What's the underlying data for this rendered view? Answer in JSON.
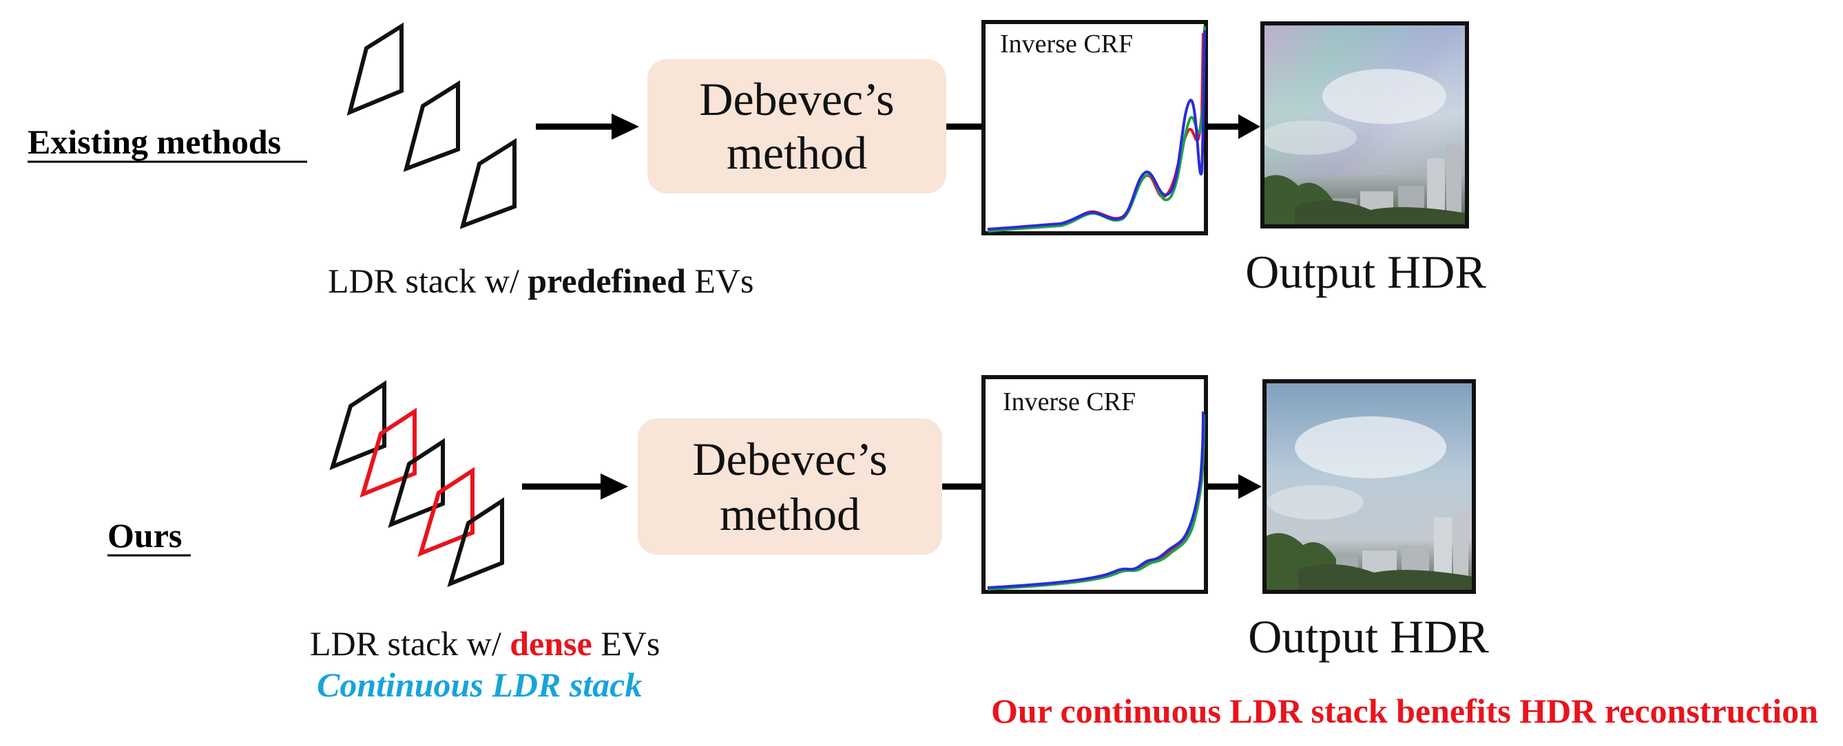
{
  "rows": {
    "top": {
      "label": "Existing methods",
      "caption_pre": "LDR stack w/",
      "caption_key": "predefined",
      "caption_post": "EVs",
      "box_line1": "Debevec’s",
      "box_line2": "method",
      "crf_title": "Inverse CRF",
      "output_label": "Output HDR"
    },
    "bottom": {
      "label": "Ours",
      "caption_pre": "LDR stack w/",
      "caption_key": "dense",
      "caption_post": "EVs",
      "subcaption": "Continuous LDR stack",
      "box_line1": "Debevec’s",
      "box_line2": "method",
      "crf_title": "Inverse CRF",
      "output_label": "Output HDR"
    }
  },
  "footer": "Our continuous LDR stack benefits HDR reconstruction",
  "colors": {
    "box_fill": "#f9e4d8",
    "accent_red": "#e8141c",
    "accent_blue": "#17a4dc",
    "curve_red": "#e8141c",
    "curve_green": "#1fa34a",
    "curve_blue": "#2b2bd8",
    "frame": "#111111"
  }
}
